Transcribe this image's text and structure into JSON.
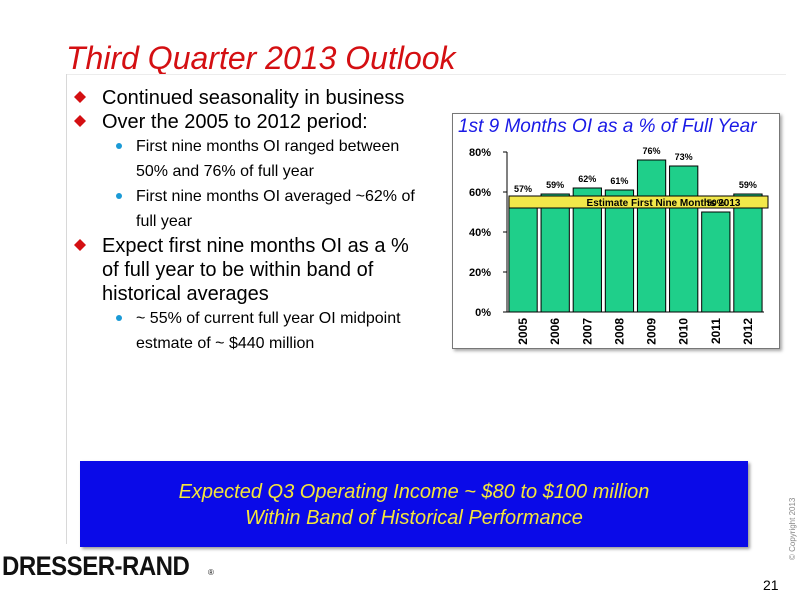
{
  "title": "Third Quarter 2013 Outlook",
  "bullets": {
    "b1": "Continued seasonality in business",
    "b2": "Over the 2005 to 2012 period:",
    "b2_sub1": "First nine months OI ranged between 50% and 76% of full year",
    "b2_sub2": "First nine months OI averaged ~62% of full year",
    "b3": "Expect first nine months OI as a % of full year to be within band of historical averages",
    "b3_sub1": "~ 55% of current full year OI midpoint estmate of ~ $440 million"
  },
  "chart_data": {
    "type": "bar",
    "title": "1st 9 Months OI as a % of Full Year",
    "categories": [
      "2005",
      "2006",
      "2007",
      "2008",
      "2009",
      "2010",
      "2011",
      "2012"
    ],
    "values": [
      57,
      59,
      62,
      61,
      76,
      73,
      50,
      59
    ],
    "data_labels": [
      "57%",
      "59%",
      "62%",
      "61%",
      "76%",
      "73%",
      "50%",
      "59%"
    ],
    "ylim": [
      0,
      80
    ],
    "yticks": [
      0,
      20,
      40,
      60,
      80
    ],
    "ytick_labels": [
      "0%",
      "20%",
      "40%",
      "60%",
      "80%"
    ],
    "annotation": {
      "text": "Estimate First Nine Months 2013",
      "range_low": 52,
      "range_high": 58
    },
    "bar_color": "#1fcf8a",
    "annotation_color": "#f2e84a",
    "xlabel": "",
    "ylabel": "",
    "grid": false
  },
  "banner": {
    "line1": "Expected Q3 Operating Income ~ $80 to $100 million",
    "line2": "Within Band of Historical Performance"
  },
  "footer": {
    "logo": "DRESSER-RAND",
    "registered": "®",
    "copyright": "© Copyright 2013",
    "page_number": "21"
  },
  "colors": {
    "title": "#d40f12",
    "bullet_marker": "#d40f12",
    "sub_bullet_dot": "#1a9ad6",
    "chart_title": "#1a1ae6",
    "banner_bg": "#0a0ae8",
    "banner_text": "#f5e63a"
  }
}
